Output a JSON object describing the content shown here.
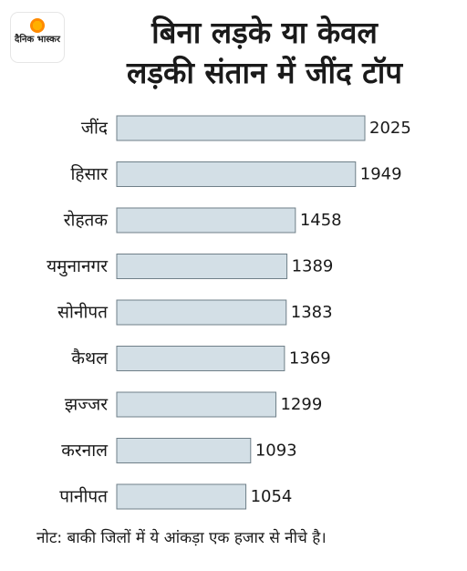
{
  "brand": {
    "name": "दैनिक भास्कर"
  },
  "title": {
    "line1": "बिना लड़के या केवल",
    "line2": "लड़की संतान में जींद टॉप"
  },
  "note": "नोट: बाकी जिलों में ये आंकड़ा एक हजार से नीचे है।",
  "colors": {
    "bar_fill": "#d3dfe6",
    "bar_stroke": "#6f7f88",
    "text": "#1a1a1a"
  },
  "chart_data": {
    "type": "bar",
    "orientation": "horizontal",
    "categories": [
      "जींद",
      "हिसार",
      "रोहतक",
      "यमुनानगर",
      "सोनीपत",
      "कैथल",
      "झज्जर",
      "करनाल",
      "पानीपत"
    ],
    "values": [
      2025,
      1949,
      1458,
      1389,
      1383,
      1369,
      1299,
      1093,
      1054
    ],
    "data_labels": [
      "2025",
      "1949",
      "1458",
      "1389",
      "1383",
      "1369",
      "1299",
      "1093",
      "1054"
    ],
    "xlim": [
      0,
      2025
    ],
    "grid": false,
    "legend": "none"
  }
}
